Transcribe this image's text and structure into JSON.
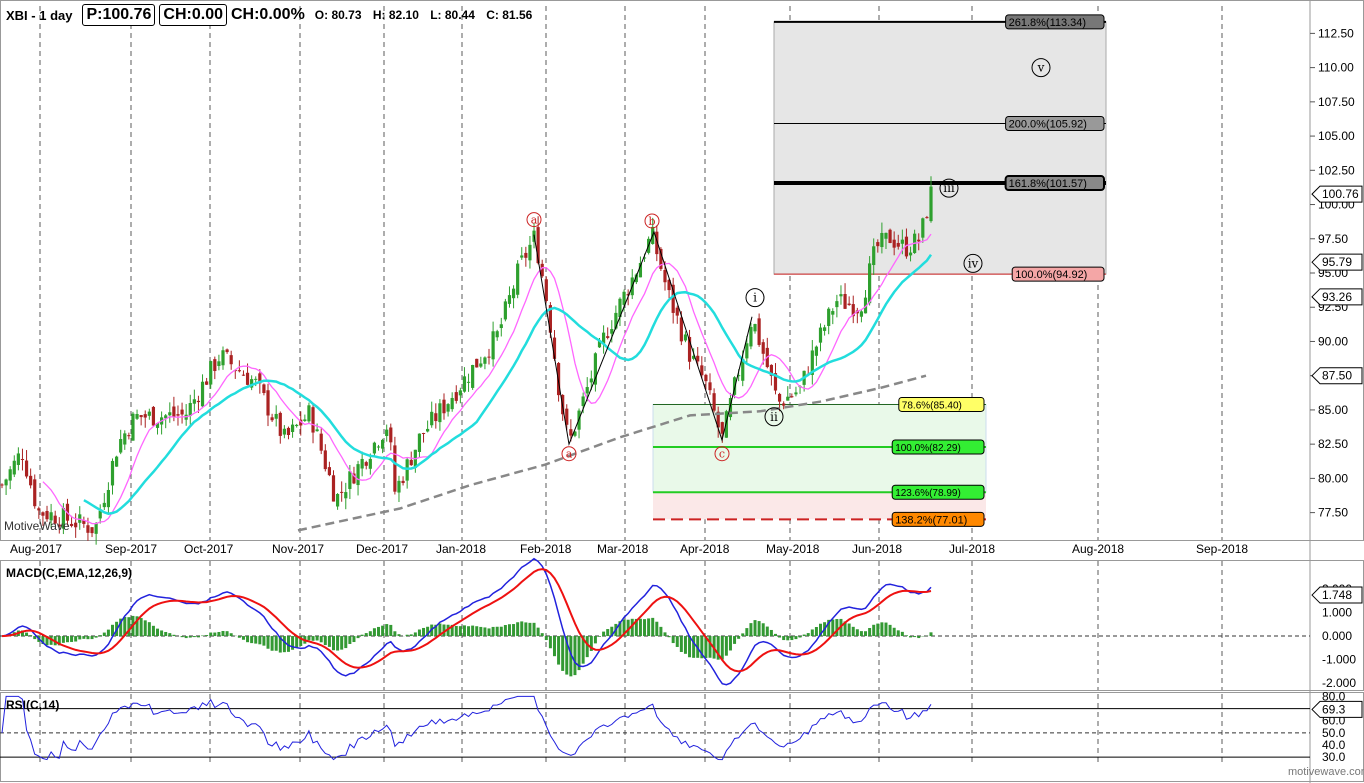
{
  "header": {
    "symbol": "XBI - 1 day",
    "price": "P:100.76",
    "change": "CH:0.00",
    "change_pct": "CH:0.00%",
    "open": "O: 80.73",
    "high": "H: 82.10",
    "low": "L: 80.44",
    "close": "C: 81.56"
  },
  "watermark_left": "MotiveWave",
  "watermark_right": "motivewave.com",
  "chart_data": [
    {
      "type": "candlestick",
      "ylim": [
        75.5,
        114.5
      ],
      "y_ticks": [
        77.5,
        80.0,
        82.5,
        85.0,
        87.5,
        90.0,
        92.5,
        95.0,
        97.5,
        100.0,
        102.5,
        105.0,
        107.5,
        110.0,
        112.5
      ],
      "y_tick_labels": [
        "77.50",
        "80.00",
        "82.50",
        "85.00",
        "87.50",
        "90.00",
        "92.50",
        "95.00",
        "97.50",
        "100.00",
        "102.50",
        "105.00",
        "107.50",
        "110.00",
        "112.50"
      ],
      "x_labels": [
        "Aug-2017",
        "Sep-2017",
        "Oct-2017",
        "Nov-2017",
        "Dec-2017",
        "Jan-2018",
        "Feb-2018",
        "Mar-2018",
        "Apr-2018",
        "May-2018",
        "Jun-2018",
        "Jul-2018",
        "Aug-2018",
        "Sep-2018"
      ],
      "price_tags": [
        {
          "label": "100.76",
          "value": 100.76,
          "color": "#ffffff"
        },
        {
          "label": "95.79",
          "value": 95.79,
          "color": "#ffffff"
        },
        {
          "label": "93.26",
          "value": 93.26,
          "color": "#ffffff"
        },
        {
          "label": "87.50",
          "value": 87.5,
          "color": "#ffffff"
        }
      ],
      "fib_levels": [
        {
          "label": "261.8%(113.34)",
          "value": 113.34,
          "color": "#777777"
        },
        {
          "label": "200.0%(105.92)",
          "value": 105.92,
          "color": "#999999"
        },
        {
          "label": "161.8%(101.57)",
          "value": 101.57,
          "color": "#888888"
        },
        {
          "label": "100.0%(94.92)",
          "value": 94.92,
          "color": "#f4a6a6"
        },
        {
          "label": "78.6%(85.40)",
          "value": 85.4,
          "color": "#ffff66"
        },
        {
          "label": "100.0%(82.29)",
          "value": 82.29,
          "color": "#33ee33"
        },
        {
          "label": "123.6%(78.99)",
          "value": 78.99,
          "color": "#33ee33"
        },
        {
          "label": "138.2%(77.01)",
          "value": 77.01,
          "color": "#ff8800"
        }
      ],
      "wave_labels_red": [
        "a",
        "b",
        "c"
      ],
      "wave_labels_black": [
        "i",
        "ii",
        "iii",
        "iv",
        "v"
      ],
      "series": [
        {
          "name": "close",
          "color": "#000000"
        },
        {
          "name": "ma-fast",
          "color": "#ff66ff"
        },
        {
          "name": "ma-mid",
          "color": "#22dddd"
        },
        {
          "name": "ma-slow",
          "color": "#888888"
        }
      ],
      "colors": {
        "up": "#2ea02e",
        "down": "#aa2222"
      }
    },
    {
      "type": "line",
      "title": "MACD(C,EMA,12,26,9)",
      "ylim": [
        -2.3,
        3.2
      ],
      "y_tick_labels": [
        "2.000",
        "1.000",
        "0.000",
        "-1.000",
        "-2.000"
      ],
      "y_ticks": [
        2,
        1,
        0,
        -1,
        -2
      ],
      "last_value": "1.748",
      "series": [
        {
          "name": "macd",
          "color": "#2222dd"
        },
        {
          "name": "signal",
          "color": "#ee1111"
        },
        {
          "name": "histogram",
          "color": "#339933"
        }
      ]
    },
    {
      "type": "line",
      "title": "RSI(C,14)",
      "ylim": [
        26,
        82
      ],
      "y_tick_labels": [
        "80.0",
        "60.0",
        "50.0",
        "40.0",
        "30.0"
      ],
      "y_ticks": [
        80,
        60,
        50,
        40,
        30
      ],
      "last_value": "69.3",
      "levels": [
        70,
        50,
        30
      ],
      "series": [
        {
          "name": "rsi",
          "color": "#2222dd"
        }
      ]
    }
  ]
}
